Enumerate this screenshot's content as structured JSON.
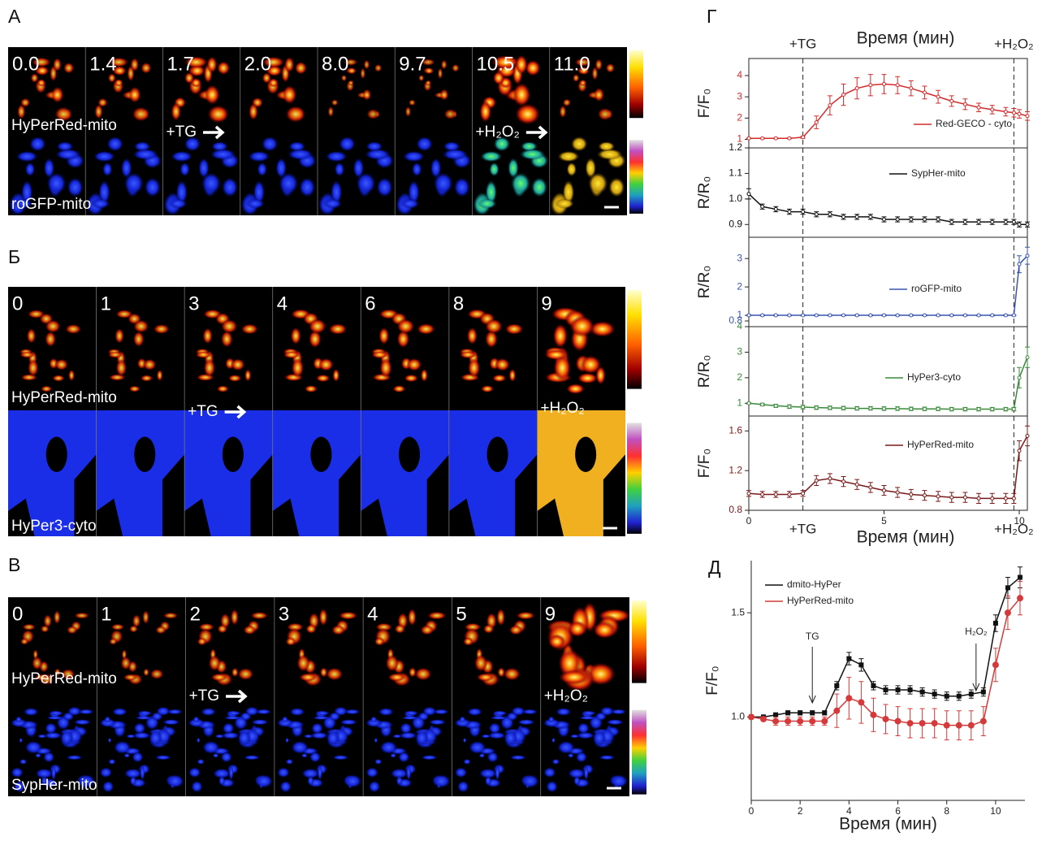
{
  "image_panels": [
    {
      "letter": "А",
      "times": [
        "0.0",
        "1.4",
        "1.7",
        "2.0",
        "8.0",
        "9.7",
        "10.5",
        "11.0"
      ],
      "labels": [
        "HyPerRed-mito",
        "+TG",
        "+H₂O₂",
        "roGFP-mito"
      ]
    },
    {
      "letter": "Б",
      "times": [
        "0",
        "1",
        "3",
        "4",
        "6",
        "8",
        "9"
      ],
      "labels": [
        "HyPerRed-mito",
        "+TG",
        "+H₂O₂",
        "HyPer3-cyto"
      ]
    },
    {
      "letter": "В",
      "times": [
        "0",
        "1",
        "2",
        "3",
        "4",
        "5",
        "9"
      ],
      "labels": [
        "HyPerRed-mito",
        "+TG",
        "+H₂O₂",
        "SypHer-mito"
      ]
    }
  ],
  "chart_data": [
    {
      "type": "line",
      "letter": "Г",
      "xlabel": "Время (мин)",
      "ylabel": "F/F₀",
      "markers": [
        {
          "label": "+TG",
          "x": 2
        },
        {
          "label": "+H₂O₂",
          "x": 9.8
        }
      ],
      "x": [
        0,
        0.5,
        1,
        1.5,
        2,
        2.5,
        3,
        3.5,
        4,
        4.5,
        5,
        5.5,
        6,
        6.5,
        7,
        7.5,
        8,
        8.5,
        9,
        9.5,
        9.8,
        10,
        10.3
      ],
      "xlim": [
        0,
        10.3
      ],
      "ylim": [
        0.6,
        4.8
      ],
      "yticks": [
        1,
        2,
        3,
        4
      ],
      "series": [
        {
          "name": "Red-GECO - cyto",
          "color": "#d42a2a",
          "values": [
            1.05,
            1.05,
            1.05,
            1.05,
            1.1,
            1.8,
            2.6,
            3.1,
            3.4,
            3.55,
            3.6,
            3.55,
            3.4,
            3.2,
            3.0,
            2.8,
            2.65,
            2.5,
            2.4,
            2.3,
            2.25,
            2.2,
            2.1
          ],
          "errors": [
            0.02,
            0.02,
            0.02,
            0.02,
            0.05,
            0.3,
            0.45,
            0.5,
            0.5,
            0.5,
            0.45,
            0.4,
            0.35,
            0.3,
            0.3,
            0.25,
            0.25,
            0.2,
            0.2,
            0.2,
            0.2,
            0.2,
            0.2
          ]
        }
      ]
    },
    {
      "type": "line",
      "ylabel": "R/R₀",
      "x": [
        0,
        0.5,
        1,
        1.5,
        2,
        2.5,
        3,
        3.5,
        4,
        4.5,
        5,
        5.5,
        6,
        6.5,
        7,
        7.5,
        8,
        8.5,
        9,
        9.5,
        9.8,
        10,
        10.3
      ],
      "xlim": [
        0,
        10.3
      ],
      "ylim": [
        0.85,
        1.2
      ],
      "yticks": [
        0.9,
        {
          "value": 1,
          "label": "1.0"
        },
        1.1,
        1.2
      ],
      "series": [
        {
          "name": "SypHer-mito",
          "color": "#111111",
          "values": [
            1.02,
            0.97,
            0.96,
            0.95,
            0.95,
            0.94,
            0.94,
            0.93,
            0.93,
            0.93,
            0.92,
            0.92,
            0.92,
            0.92,
            0.92,
            0.91,
            0.91,
            0.91,
            0.91,
            0.91,
            0.91,
            0.9,
            0.9
          ],
          "errors": [
            0.02,
            0.01,
            0.01,
            0.01,
            0.01,
            0.01,
            0.01,
            0.01,
            0.01,
            0.01,
            0.01,
            0.01,
            0.01,
            0.01,
            0.01,
            0.01,
            0.01,
            0.01,
            0.01,
            0.01,
            0.01,
            0.01,
            0.01
          ]
        }
      ]
    },
    {
      "type": "line",
      "ylabel": "R/R₀",
      "x": [
        0,
        0.5,
        1,
        1.5,
        2,
        2.5,
        3,
        3.5,
        4,
        4.5,
        5,
        5.5,
        6,
        6.5,
        7,
        7.5,
        8,
        8.5,
        9,
        9.5,
        9.8,
        10,
        10.3
      ],
      "xlim": [
        0,
        10.3
      ],
      "ylim": [
        0.6,
        3.75
      ],
      "yticks": [
        {
          "value": 0.8,
          "label": "0.8"
        },
        1,
        2,
        3
      ],
      "series": [
        {
          "name": "roGFP-mito",
          "color": "#3a55b0",
          "values": [
            1,
            1,
            1,
            1,
            1,
            1,
            1,
            1,
            1,
            1,
            1,
            1,
            1,
            1,
            1,
            1,
            1,
            1,
            1,
            1,
            1,
            2.8,
            3.1
          ],
          "errors": [
            0.02,
            0.02,
            0.02,
            0.02,
            0.02,
            0.02,
            0.02,
            0.02,
            0.02,
            0.02,
            0.02,
            0.02,
            0.02,
            0.02,
            0.02,
            0.02,
            0.02,
            0.02,
            0.02,
            0.02,
            0.02,
            0.3,
            0.3
          ]
        }
      ]
    },
    {
      "type": "line",
      "ylabel": "R/R₀",
      "x": [
        0,
        0.5,
        1,
        1.5,
        2,
        2.5,
        3,
        3.5,
        4,
        4.5,
        5,
        5.5,
        6,
        6.5,
        7,
        7.5,
        8,
        8.5,
        9,
        9.5,
        9.8,
        10,
        10.3
      ],
      "xlim": [
        0,
        10.3
      ],
      "ylim": [
        0.5,
        4
      ],
      "yticks": [
        1,
        2,
        3,
        4
      ],
      "series": [
        {
          "name": "HyPer3-cyto",
          "color": "#3a8a3a",
          "values": [
            1.0,
            0.95,
            0.9,
            0.87,
            0.85,
            0.83,
            0.82,
            0.81,
            0.8,
            0.8,
            0.79,
            0.79,
            0.78,
            0.78,
            0.78,
            0.77,
            0.77,
            0.77,
            0.77,
            0.77,
            0.77,
            2.0,
            2.8
          ],
          "errors": [
            0.03,
            0.05,
            0.06,
            0.07,
            0.07,
            0.07,
            0.07,
            0.07,
            0.07,
            0.07,
            0.07,
            0.07,
            0.07,
            0.07,
            0.07,
            0.07,
            0.07,
            0.07,
            0.07,
            0.07,
            0.07,
            0.4,
            0.4
          ]
        }
      ]
    },
    {
      "type": "line",
      "ylabel": "F/F₀",
      "xlabel": "Время (мин)",
      "markers": [
        {
          "label": "+TG",
          "x": 2
        },
        {
          "label": "+H₂O₂",
          "x": 9.8
        }
      ],
      "x": [
        0,
        0.5,
        1,
        1.5,
        2,
        2.5,
        3,
        3.5,
        4,
        4.5,
        5,
        5.5,
        6,
        6.5,
        7,
        7.5,
        8,
        8.5,
        9,
        9.5,
        9.8,
        10,
        10.3
      ],
      "xlim": [
        0,
        10.3
      ],
      "xticks": [
        0,
        5,
        10
      ],
      "ylim": [
        0.8,
        1.75
      ],
      "yticks": [
        0.8,
        1.2,
        1.6
      ],
      "series": [
        {
          "name": "HyPerRed-mito",
          "color": "#7a1a1a",
          "values": [
            0.97,
            0.96,
            0.96,
            0.96,
            0.97,
            1.1,
            1.12,
            1.09,
            1.06,
            1.03,
            1.0,
            0.98,
            0.96,
            0.95,
            0.94,
            0.93,
            0.93,
            0.92,
            0.92,
            0.92,
            0.92,
            1.4,
            1.55
          ],
          "errors": [
            0.03,
            0.03,
            0.03,
            0.03,
            0.03,
            0.05,
            0.05,
            0.05,
            0.05,
            0.05,
            0.05,
            0.05,
            0.05,
            0.05,
            0.05,
            0.05,
            0.05,
            0.05,
            0.05,
            0.05,
            0.05,
            0.1,
            0.1
          ]
        }
      ]
    },
    {
      "type": "line",
      "letter": "Д",
      "xlabel": "Время (мин)",
      "ylabel": "F/F₀",
      "annotations": [
        {
          "text": "TG",
          "x": 2.5
        },
        {
          "text": "H₂O₂",
          "x": 9.2
        }
      ],
      "x": [
        0,
        0.5,
        1,
        1.5,
        2,
        2.5,
        3,
        3.5,
        4,
        4.5,
        5,
        5.5,
        6,
        6.5,
        7,
        7.5,
        8,
        8.5,
        9,
        9.5,
        10,
        10.5,
        11
      ],
      "xlim": [
        0,
        11.2
      ],
      "xticks": [
        0,
        2,
        4,
        6,
        8,
        10
      ],
      "ylim": [
        0.6,
        1.75
      ],
      "yticks": [
        {
          "value": 1,
          "label": "1.0"
        },
        1.5
      ],
      "series": [
        {
          "name": "dmito-HyPer",
          "color": "#111111",
          "values": [
            1.0,
            1.0,
            1.01,
            1.02,
            1.02,
            1.02,
            1.02,
            1.15,
            1.28,
            1.25,
            1.15,
            1.13,
            1.13,
            1.13,
            1.12,
            1.11,
            1.1,
            1.1,
            1.11,
            1.12,
            1.45,
            1.62,
            1.67
          ],
          "errors": [
            0.01,
            0.01,
            0.01,
            0.01,
            0.01,
            0.01,
            0.01,
            0.02,
            0.03,
            0.03,
            0.02,
            0.02,
            0.02,
            0.02,
            0.02,
            0.02,
            0.02,
            0.02,
            0.02,
            0.02,
            0.04,
            0.05,
            0.05
          ]
        },
        {
          "name": "HyPerRed-mito",
          "color": "#d43a3a",
          "values": [
            1.0,
            0.99,
            0.98,
            0.98,
            0.98,
            0.98,
            0.98,
            1.03,
            1.09,
            1.07,
            1.01,
            0.99,
            0.98,
            0.97,
            0.97,
            0.97,
            0.96,
            0.96,
            0.96,
            0.98,
            1.25,
            1.5,
            1.57
          ],
          "errors": [
            0.01,
            0.01,
            0.02,
            0.02,
            0.02,
            0.02,
            0.02,
            0.08,
            0.1,
            0.1,
            0.08,
            0.07,
            0.07,
            0.07,
            0.07,
            0.07,
            0.07,
            0.07,
            0.07,
            0.07,
            0.08,
            0.08,
            0.08
          ]
        }
      ]
    }
  ]
}
